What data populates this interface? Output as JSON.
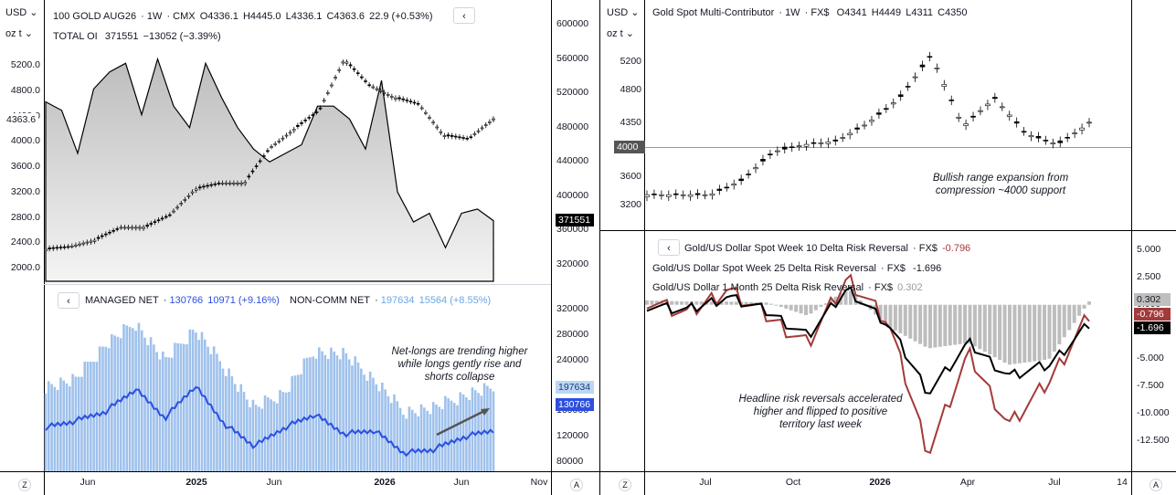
{
  "left": {
    "currency_button": "USD",
    "unit_button": "oz t",
    "back_arrow_glyph": "‹",
    "legend_main": {
      "symbol": "100 GOLD AUG26",
      "interval": "1W",
      "exchange": "CMX",
      "open": "O4336.1",
      "high": "H4445.0",
      "low": "L4336.1",
      "close": "C4363.6",
      "change": "22.9 (+0.53%)"
    },
    "legend_oi": {
      "label": "TOTAL OI",
      "value": "371551",
      "change": "−13052 (−3.39%)"
    },
    "legend_lower": {
      "managed_label": "MANAGED NET",
      "managed_value": "130766",
      "managed_change": "10971 (+9.16%)",
      "noncomm_label": "NON-COMM NET",
      "noncomm_value": "197634",
      "noncomm_change": "15564 (+8.55%)"
    },
    "annotation": "Net-longs are trending higher while longs gently rise and shorts collapse",
    "price_axis_labels": [
      "5200.0",
      "4800.0",
      "4400.0",
      "4000.0",
      "3600.0",
      "3200.0",
      "2800.0",
      "2400.0",
      "2000.0"
    ],
    "price_axis_values": [
      5200,
      4800,
      4400,
      4000,
      3600,
      3200,
      2800,
      2400,
      2000
    ],
    "price_marker": "4363.6",
    "oi_axis_labels": [
      "600000",
      "560000",
      "520000",
      "480000",
      "440000",
      "400000",
      "360000",
      "320000"
    ],
    "oi_axis_values": [
      600000,
      560000,
      520000,
      480000,
      440000,
      400000,
      360000,
      320000
    ],
    "oi_marker": "371551",
    "cot_axis_labels": [
      "320000",
      "280000",
      "240000",
      "200000",
      "160000",
      "120000",
      "80000"
    ],
    "cot_axis_values": [
      320000,
      280000,
      240000,
      200000,
      160000,
      120000,
      80000
    ],
    "noncomm_marker": "197634",
    "managed_marker": "130766",
    "time_labels": [
      "Jun",
      "2025",
      "Jun",
      "2026",
      "Jun",
      "Nov"
    ],
    "zoom_label": "Z",
    "auto_label": "A"
  },
  "right": {
    "currency_button": "USD",
    "unit_button": "oz t",
    "back_arrow_glyph": "‹",
    "legend_main": {
      "symbol": "Gold Spot Multi-Contributor",
      "interval": "1W",
      "exchange": "FX$",
      "open": "O4341",
      "high": "H4449",
      "low": "L4311",
      "close": "C4350"
    },
    "price_axis_labels": [
      "5200",
      "4800",
      "4350",
      "3600",
      "3200"
    ],
    "price_axis_values": [
      5200,
      4800,
      4350,
      3600,
      3200
    ],
    "support_label": "4000",
    "annotation_top": "Bullish range expansion from compression ~4000 support",
    "legend_rr10": {
      "label": "Gold/US Dollar Spot Week 10 Delta Risk Reversal",
      "exchange": "FX$",
      "value": "-0.796"
    },
    "legend_rr25w": {
      "label": "Gold/US Dollar Spot Week 25 Delta Risk Reversal",
      "exchange": "FX$",
      "value": "-1.696"
    },
    "legend_rr25m": {
      "label": "Gold/US Dollar 1 Month 25 Delta Risk Reversal",
      "exchange": "FX$",
      "value": "0.302"
    },
    "rr_axis_labels": [
      "5.000",
      "2.500",
      "0.000",
      "-2.500",
      "-5.000",
      "-7.500",
      "-10.000",
      "-12.500"
    ],
    "rr_axis_values": [
      5,
      2.5,
      0,
      -2.5,
      -5,
      -7.5,
      -10,
      -12.5
    ],
    "rr_markers": {
      "m1": "0.302",
      "rr10": "-0.796",
      "rr25w": "-1.696"
    },
    "annotation_bottom": "Headline risk reversals accelerated higher and flipped to positive territory last week",
    "time_labels": [
      "Jul",
      "Oct",
      "2026",
      "Apr",
      "Jul",
      "14"
    ],
    "zoom_label": "Z",
    "auto_label": "A"
  },
  "colors": {
    "blue_line": "#2c4fe0",
    "blue_bar": "#9fc1ec",
    "area_fill": "#c9c9c9",
    "red_line": "#a33a3a",
    "black_line": "#000000",
    "green_candle": "#b9f2b6",
    "axis_line": "#000000",
    "grid": "#f0f3fa"
  },
  "chart_data": [
    {
      "type": "line",
      "title": "100 GOLD AUG26 · 1W · CMX",
      "series": [
        {
          "name": "100 GOLD AUG26",
          "kind": "candlestick",
          "x": [
            "2024-04",
            "2024-06",
            "2024-08",
            "2024-10",
            "2024-12",
            "2025-02",
            "2025-04",
            "2025-06",
            "2025-08",
            "2025-10",
            "2025-12",
            "2026-01",
            "2026-02",
            "2026-03",
            "2026-04",
            "2026-05",
            "2026-06",
            "2026-07",
            "2026-08"
          ],
          "values": [
            2300,
            2350,
            2450,
            2650,
            2650,
            2850,
            3250,
            3350,
            3350,
            3900,
            4200,
            4500,
            5300,
            4900,
            4700,
            4600,
            4100,
            4050,
            4363.6
          ]
        },
        {
          "name": "TOTAL OI",
          "kind": "area",
          "x": [
            "2024-04",
            "2024-05",
            "2024-06",
            "2024-07",
            "2024-08",
            "2024-09",
            "2024-10",
            "2024-11",
            "2024-12",
            "2025-01",
            "2025-02",
            "2025-03",
            "2025-04",
            "2025-05",
            "2025-06",
            "2025-07",
            "2025-08",
            "2025-09",
            "2025-10",
            "2025-11",
            "2025-12",
            "2026-01",
            "2026-02",
            "2026-03",
            "2026-04",
            "2026-05",
            "2026-06",
            "2026-07",
            "2026-08"
          ],
          "values": [
            510000,
            500000,
            450000,
            525000,
            545000,
            555000,
            495000,
            560000,
            505000,
            480000,
            555000,
            515000,
            480000,
            455000,
            440000,
            450000,
            460000,
            505000,
            505000,
            490000,
            455000,
            535000,
            405000,
            370000,
            380000,
            340000,
            380000,
            385000,
            371551
          ]
        }
      ]
    },
    {
      "type": "bar",
      "title": "COT positioning",
      "series": [
        {
          "name": "NON-COMM NET",
          "kind": "bar",
          "x": [
            "2024-04",
            "2024-06",
            "2024-08",
            "2024-10",
            "2024-12",
            "2025-02",
            "2025-04",
            "2025-06",
            "2025-08",
            "2025-10",
            "2025-12",
            "2026-01",
            "2026-02",
            "2026-04",
            "2026-06",
            "2026-08"
          ],
          "values": [
            200000,
            210000,
            265000,
            300000,
            240000,
            290000,
            230000,
            165000,
            190000,
            255000,
            250000,
            210000,
            160000,
            165000,
            185000,
            197634
          ]
        },
        {
          "name": "MANAGED NET",
          "kind": "line",
          "x": [
            "2024-04",
            "2024-06",
            "2024-08",
            "2024-10",
            "2024-12",
            "2025-02",
            "2025-04",
            "2025-06",
            "2025-08",
            "2025-10",
            "2025-12",
            "2026-01",
            "2026-02",
            "2026-04",
            "2026-06",
            "2026-08"
          ],
          "values": [
            135000,
            145000,
            160000,
            195000,
            150000,
            200000,
            140000,
            105000,
            135000,
            155000,
            125000,
            130000,
            95000,
            100000,
            120000,
            130766
          ]
        }
      ]
    },
    {
      "type": "line",
      "title": "Gold Spot Multi-Contributor · 1W · FX$",
      "series": [
        {
          "name": "Gold Spot Multi-Contributor",
          "kind": "candlestick",
          "x": [
            "2025-06",
            "2025-07",
            "2025-08",
            "2025-09",
            "2025-10",
            "2025-11",
            "2025-12",
            "2026-01",
            "2026-02",
            "2026-03",
            "2026-04",
            "2026-05",
            "2026-06",
            "2026-07",
            "2026-08"
          ],
          "values": [
            3350,
            3350,
            3350,
            3550,
            3950,
            4050,
            4100,
            4350,
            4700,
            5300,
            4300,
            4700,
            4200,
            4050,
            4350
          ]
        }
      ]
    },
    {
      "type": "line",
      "title": "Gold/US Dollar Delta Risk Reversals",
      "series": [
        {
          "name": "Gold/US Dollar 1 Month 25 Delta Risk Reversal",
          "kind": "bar",
          "x": [
            "2025-06",
            "2025-08",
            "2025-10",
            "2025-12",
            "2026-01",
            "2026-02",
            "2026-03",
            "2026-04",
            "2026-05",
            "2026-06",
            "2026-07",
            "2026-08"
          ],
          "values": [
            0.4,
            0.3,
            0.3,
            0.2,
            -1.0,
            1.5,
            -2.0,
            -4.0,
            -3.5,
            -5.5,
            -5.0,
            0.302
          ]
        },
        {
          "name": "Gold/US Dollar Spot Week 10 Delta Risk Reversal",
          "kind": "line",
          "x": [
            "2025-06",
            "2025-08",
            "2025-10",
            "2025-12",
            "2026-01",
            "2026-02",
            "2026-03",
            "2026-04",
            "2026-05",
            "2026-06",
            "2026-07",
            "2026-08"
          ],
          "values": [
            0.5,
            -0.8,
            1.5,
            -1.0,
            -3.5,
            2.5,
            -1.5,
            -13.5,
            -4.5,
            -11.0,
            -7.0,
            -0.796
          ]
        },
        {
          "name": "Gold/US Dollar Spot Week 25 Delta Risk Reversal",
          "kind": "line",
          "x": [
            "2025-06",
            "2025-08",
            "2025-10",
            "2025-12",
            "2026-01",
            "2026-02",
            "2026-03",
            "2026-04",
            "2026-05",
            "2026-06",
            "2026-07",
            "2026-08"
          ],
          "values": [
            0.0,
            -0.5,
            0.8,
            -0.6,
            -2.8,
            1.5,
            -1.8,
            -8.0,
            -3.5,
            -6.5,
            -5.5,
            -1.696
          ]
        }
      ]
    }
  ]
}
